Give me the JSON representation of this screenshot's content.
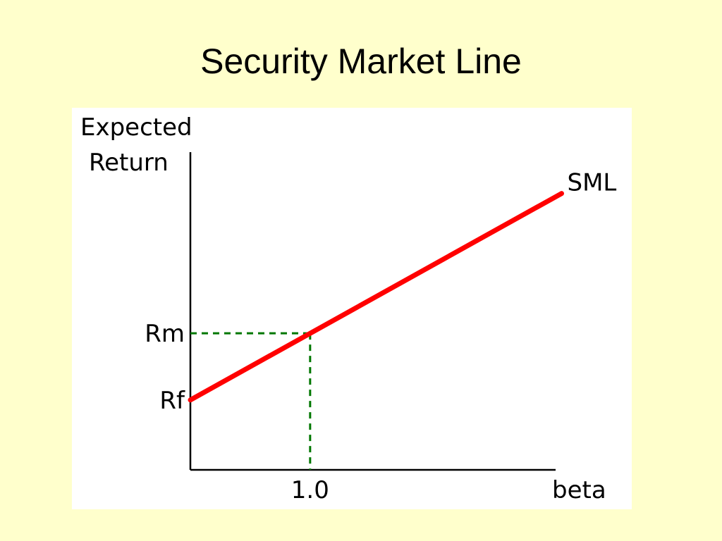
{
  "title": "Security Market Line",
  "colors": {
    "background": "#ffffcc",
    "panel": "#ffffff",
    "line": "#ff0000",
    "guide": "#007700",
    "axis": "#000000"
  },
  "chart_data": {
    "type": "line",
    "title": "",
    "ylabel_lines": [
      "Expected",
      "Return"
    ],
    "xlabel": "beta",
    "grid": false,
    "xlim": [
      0,
      3.05
    ],
    "ylim": [
      0,
      1
    ],
    "y_ticks": [
      {
        "label": "Rf",
        "value": 0.22
      },
      {
        "label": "Rm",
        "value": 0.43
      }
    ],
    "x_ticks": [
      {
        "label": "1.0",
        "value": 1.0
      }
    ],
    "series": [
      {
        "name": "SML",
        "x": [
          0,
          3.1
        ],
        "y": [
          0.22,
          0.87
        ]
      }
    ],
    "guides": {
      "x": 1.0,
      "y": 0.43
    }
  }
}
